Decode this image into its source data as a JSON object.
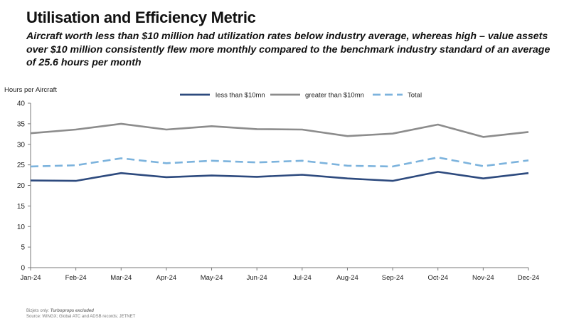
{
  "header": {
    "title": "Utilisation and Efficiency Metric",
    "subtitle": "Aircraft worth less than $10 million had utilization rates below industry average, whereas high – value assets over $10 million consistently flew more monthly compared to the benchmark industry standard of an average of 25.6 hours per month"
  },
  "chart_data": {
    "type": "line",
    "title": "",
    "ylabel": "Hours per Aircraft",
    "xlabel": "",
    "ylim": [
      0,
      40
    ],
    "yticks": [
      0,
      5,
      10,
      15,
      20,
      25,
      30,
      35,
      40
    ],
    "grid": false,
    "legend_position": "top-center",
    "categories": [
      "Jan-24",
      "Feb-24",
      "Mar-24",
      "Apr-24",
      "May-24",
      "Jun-24",
      "Jul-24",
      "Aug-24",
      "Sep-24",
      "Oct-24",
      "Nov-24",
      "Dec-24"
    ],
    "series": [
      {
        "name": "less than $10mn",
        "color": "#2d4a7e",
        "style": "solid",
        "values": [
          21.2,
          21.1,
          23.0,
          22.0,
          22.4,
          22.1,
          22.6,
          21.7,
          21.1,
          23.3,
          21.7,
          23.0
        ]
      },
      {
        "name": "greater than $10mn",
        "color": "#8c8c8c",
        "style": "solid",
        "values": [
          32.7,
          33.6,
          35.0,
          33.6,
          34.4,
          33.7,
          33.6,
          32.0,
          32.6,
          34.8,
          31.8,
          33.0
        ]
      },
      {
        "name": "Total",
        "color": "#7cb3dd",
        "style": "dashed",
        "values": [
          24.6,
          24.9,
          26.6,
          25.4,
          26.0,
          25.6,
          26.0,
          24.8,
          24.6,
          26.8,
          24.7,
          26.1
        ]
      }
    ]
  },
  "footnote": {
    "line1_prefix": "Bizjets only:",
    "line1_emph": "Turboprops excluded",
    "line2": "Source: WINGX; Global ATC and ADSB records; JETNET"
  }
}
